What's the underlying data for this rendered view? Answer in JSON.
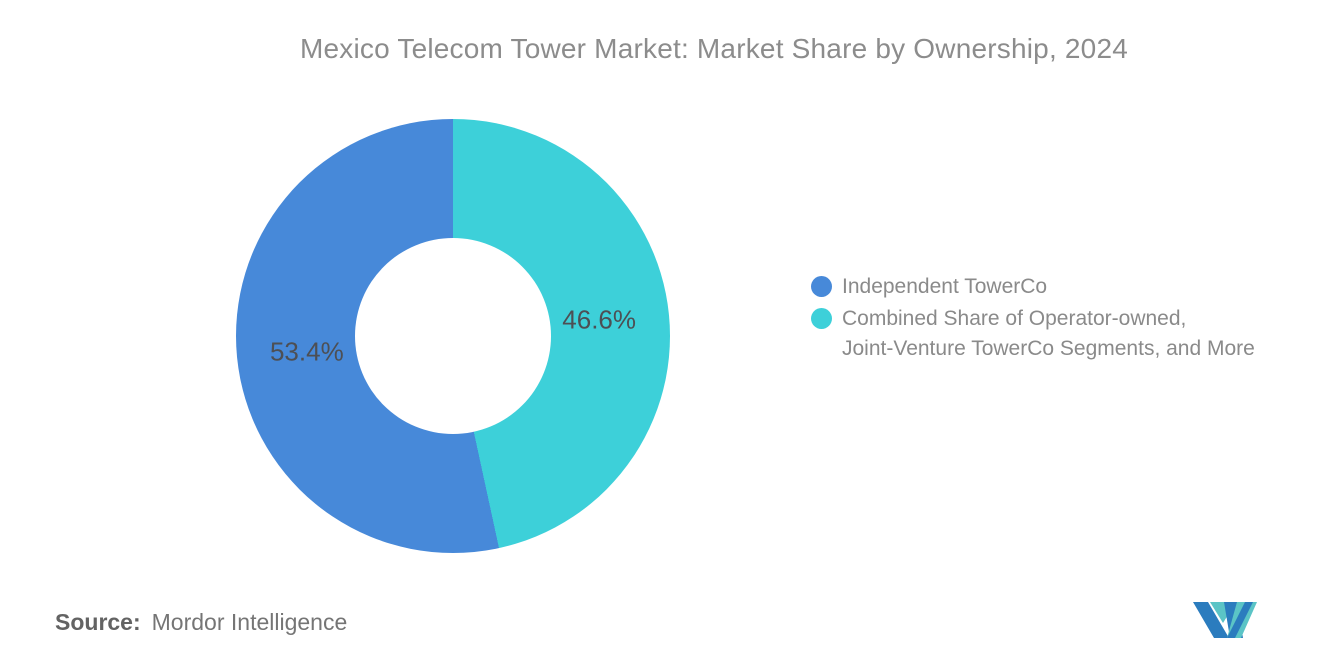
{
  "title": "Mexico Telecom Tower Market: Market Share by Ownership, 2024",
  "chart_data": {
    "type": "pie",
    "subtype": "donut",
    "title": "Mexico Telecom Tower Market: Market Share by Ownership, 2024",
    "start_angle_deg": 0,
    "direction": "clockwise",
    "inner_radius_ratio": 0.45,
    "legend_position": "right",
    "slices": [
      {
        "name": "Combined Share of Operator-owned, Joint-Venture TowerCo Segments, and More",
        "value": 46.6,
        "label": "46.6%",
        "color": "#3dd0d9"
      },
      {
        "name": "Independent TowerCo",
        "value": 53.4,
        "label": "53.4%",
        "color": "#4789d9"
      }
    ]
  },
  "legend": {
    "items": [
      {
        "label": "Independent TowerCo",
        "color": "#4789d9"
      },
      {
        "label": "Combined Share of Operator-owned,\nJoint-Venture TowerCo Segments, and More",
        "color": "#3dd0d9"
      }
    ]
  },
  "source": {
    "label": "Source:",
    "text": "Mordor Intelligence"
  },
  "logo": {
    "name": "mordor-intelligence-logo",
    "blue": "#2b7cbe",
    "teal": "#5bc4c6"
  }
}
